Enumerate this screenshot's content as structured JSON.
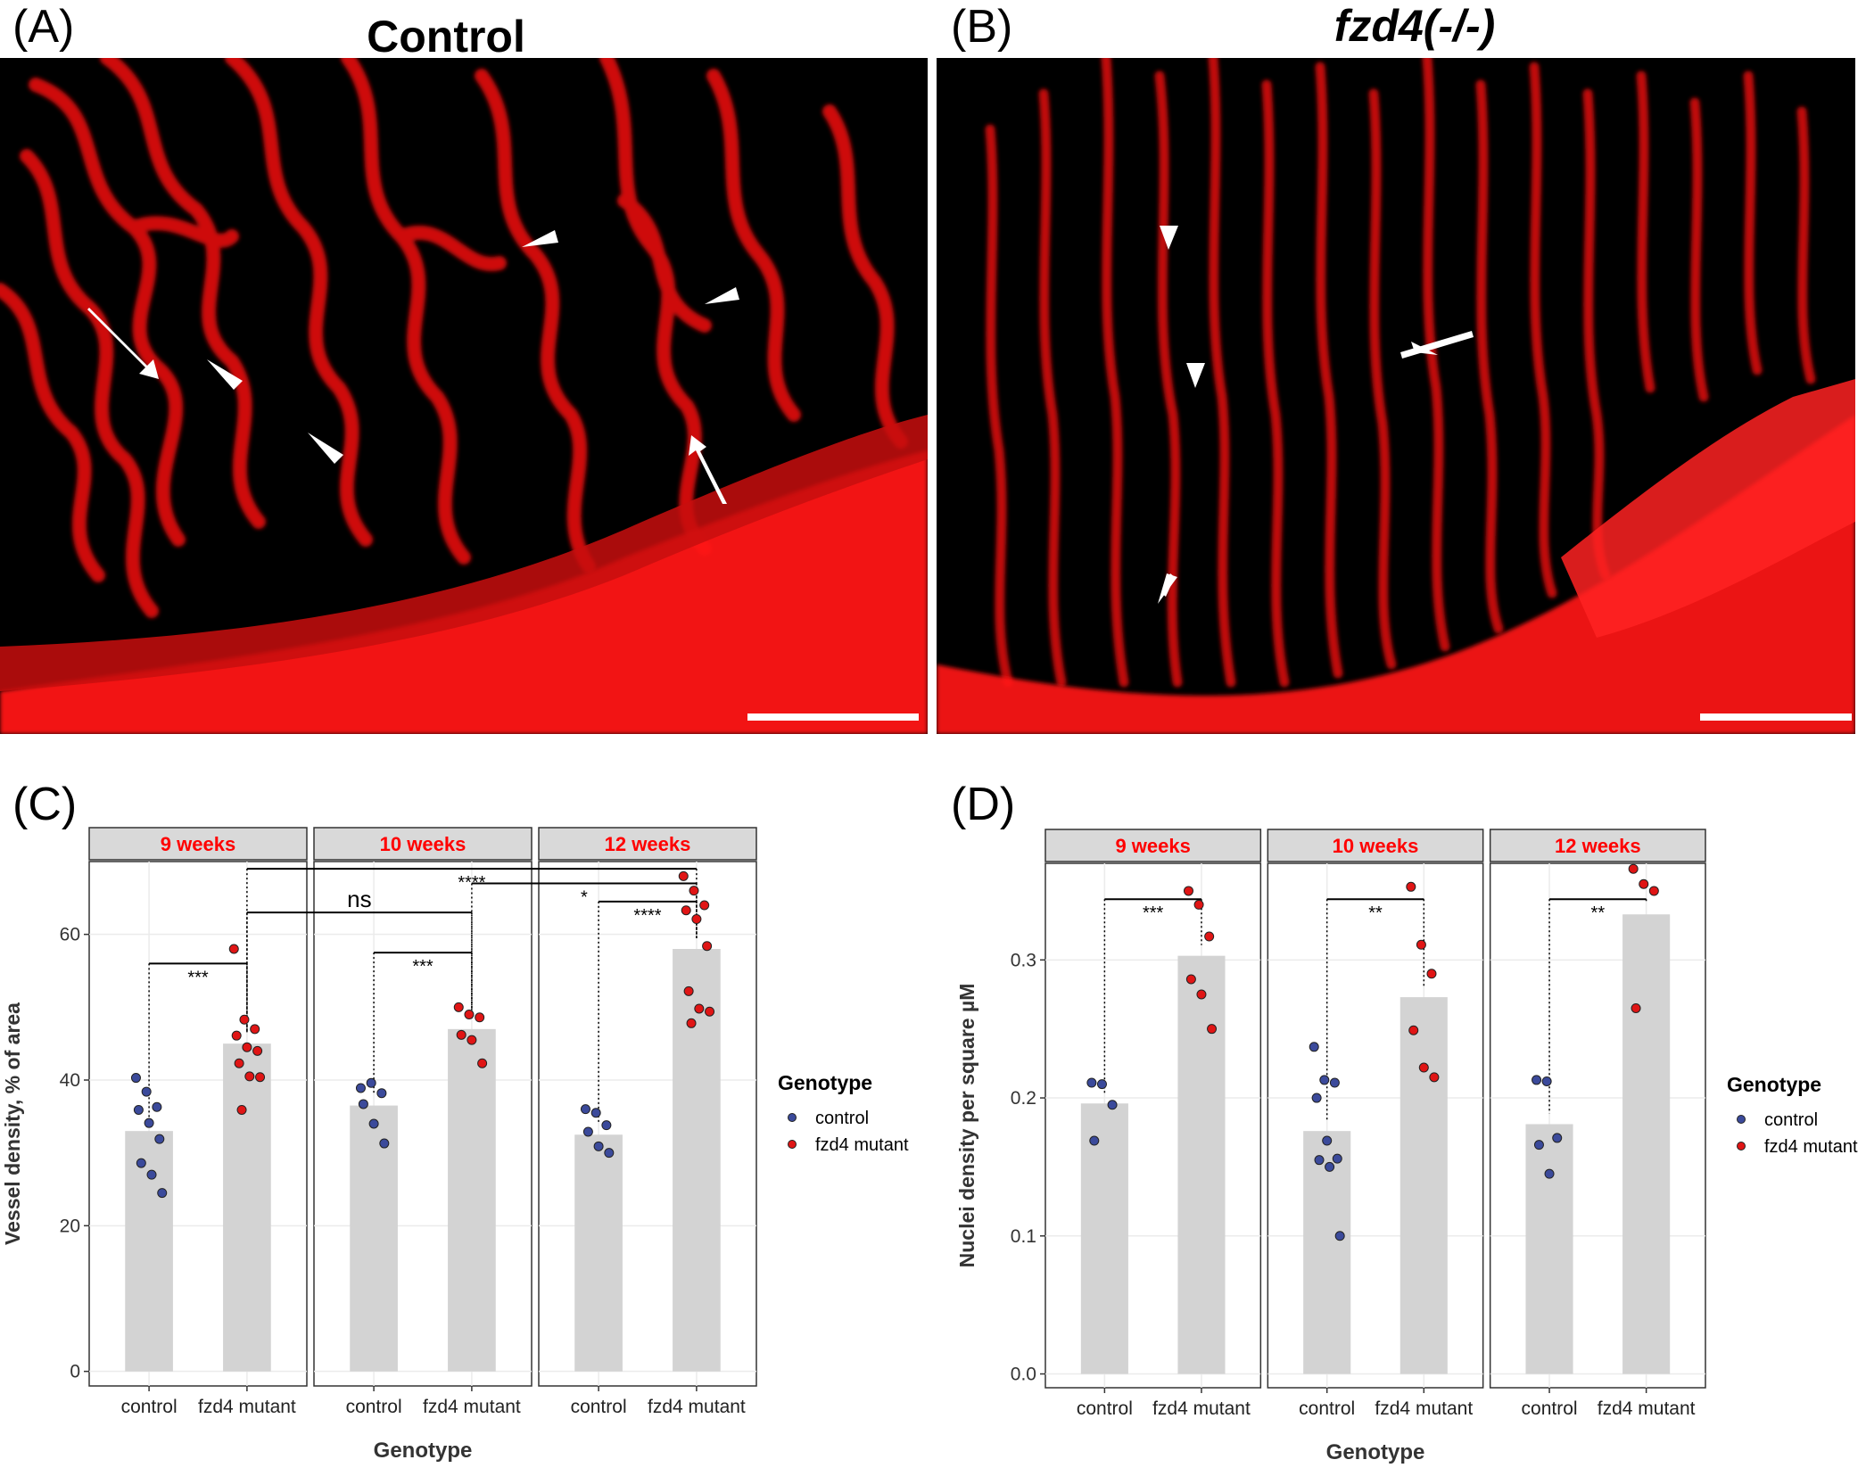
{
  "panels": {
    "a": {
      "letter": "(A)",
      "title": "Control"
    },
    "b": {
      "letter": "(B)",
      "title": "fzd4(-/-)"
    },
    "c": {
      "letter": "(C)"
    },
    "d": {
      "letter": "(D)"
    }
  },
  "colors": {
    "vessel": "#ff1a1a",
    "control": "#3b4a9b",
    "mutant": "#e01515",
    "strip_bg": "#d9d9d9",
    "strip_text": "#ff0000",
    "bar": "#d3d3d3"
  },
  "chart_data": [
    {
      "id": "C",
      "type": "bar",
      "facets": [
        "9 weeks",
        "10 weeks",
        "12 weeks"
      ],
      "categories": [
        "control",
        "fzd4 mutant"
      ],
      "ylabel": "Vessel density, % of area",
      "xlabel": "Genotype",
      "ylim": [
        -2,
        70
      ],
      "yticks": [
        0,
        20,
        40,
        60
      ],
      "bars": [
        [
          33,
          45
        ],
        [
          36.5,
          47
        ],
        [
          32.5,
          58
        ]
      ],
      "points": {
        "control": [
          [
            40.3,
            38.4,
            36.3,
            35.9,
            34.1,
            31.9,
            28.6,
            27.0,
            24.5
          ],
          [
            38.9,
            39.6,
            38.2,
            36.7,
            34.0,
            31.3
          ],
          [
            36.0,
            35.5,
            33.8,
            32.9,
            30.9,
            30.0
          ]
        ],
        "fzd4 mutant": [
          [
            58.0,
            48.3,
            47.0,
            46.1,
            44.5,
            44.0,
            42.3,
            40.5,
            40.4,
            35.9
          ],
          [
            50.0,
            49.0,
            48.6,
            46.2,
            45.5,
            42.3
          ],
          [
            68.0,
            66.0,
            64.0,
            63.3,
            62.1,
            58.4,
            52.2,
            49.8,
            49.4,
            47.8
          ]
        ]
      },
      "significance": [
        {
          "label": "***",
          "facet": 0,
          "from": 0,
          "to": 1,
          "y": 56
        },
        {
          "label": "***",
          "facet": 1,
          "from": 0,
          "to": 1,
          "y": 57.5
        },
        {
          "label": "ns",
          "facet": 1,
          "from_facet": 0,
          "from": 1,
          "to": 1,
          "y": 63
        },
        {
          "label": "****",
          "facet": 2,
          "from_facet": 0,
          "from": 1,
          "to": 1,
          "y": 69
        },
        {
          "label": "*",
          "facet": 2,
          "from_facet": 1,
          "from": 1,
          "to": 1,
          "y": 67
        },
        {
          "label": "****",
          "facet": 2,
          "from": 0,
          "to": 1,
          "y": 64.5
        }
      ],
      "legend": {
        "title": "Genotype",
        "items": [
          "control",
          "fzd4 mutant"
        ],
        "placement": "right"
      }
    },
    {
      "id": "D",
      "type": "bar",
      "facets": [
        "9 weeks",
        "10 weeks",
        "12 weeks"
      ],
      "categories": [
        "control",
        "fzd4 mutant"
      ],
      "ylabel": "Nuclei density per square  µM",
      "xlabel": "Genotype",
      "ylim": [
        -0.01,
        0.37
      ],
      "yticks": [
        0.0,
        0.1,
        0.2,
        0.3
      ],
      "ytick_labels": [
        "0.0",
        "0.1",
        "0.2",
        "0.3"
      ],
      "bars": [
        [
          0.196,
          0.303
        ],
        [
          0.176,
          0.273
        ],
        [
          0.181,
          0.333
        ]
      ],
      "points": {
        "control": [
          [
            0.211,
            0.21,
            0.195,
            0.169
          ],
          [
            0.237,
            0.213,
            0.211,
            0.2,
            0.169,
            0.156,
            0.155,
            0.15,
            0.1
          ],
          [
            0.213,
            0.212,
            0.171,
            0.166,
            0.145
          ]
        ],
        "fzd4 mutant": [
          [
            0.35,
            0.34,
            0.317,
            0.286,
            0.275,
            0.25
          ],
          [
            0.353,
            0.311,
            0.29,
            0.249,
            0.222,
            0.215
          ],
          [
            0.366,
            0.355,
            0.35,
            0.265
          ]
        ]
      },
      "significance": [
        {
          "label": "***",
          "facet": 0,
          "from": 0,
          "to": 1,
          "y": 0.344
        },
        {
          "label": "**",
          "facet": 1,
          "from": 0,
          "to": 1,
          "y": 0.344
        },
        {
          "label": "**",
          "facet": 2,
          "from": 0,
          "to": 1,
          "y": 0.344
        }
      ],
      "legend": {
        "title": "Genotype",
        "items": [
          "control",
          "fzd4 mutant"
        ],
        "placement": "right"
      }
    }
  ]
}
